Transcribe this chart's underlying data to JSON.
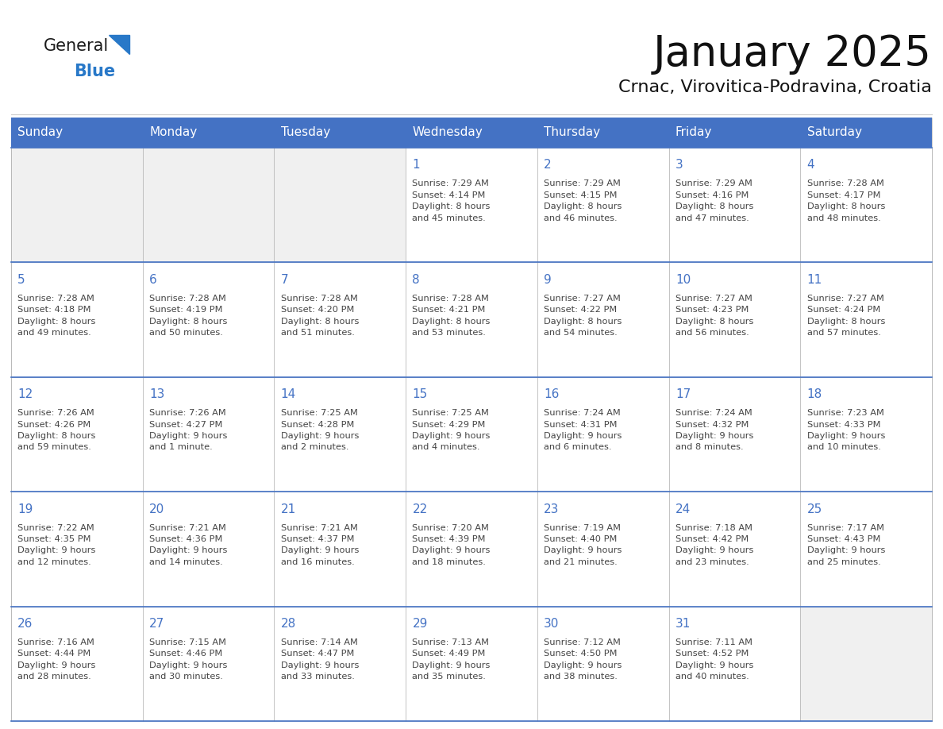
{
  "title": "January 2025",
  "subtitle": "Crnac, Virovitica-Podravina, Croatia",
  "header_color": "#4472C4",
  "header_text_color": "#FFFFFF",
  "cell_bg_color": "#FFFFFF",
  "empty_cell_bg_color": "#F0F0F0",
  "cell_border_color": "#AAAAAA",
  "row_border_color": "#4472C4",
  "day_number_color": "#4472C4",
  "text_color": "#444444",
  "days_of_week": [
    "Sunday",
    "Monday",
    "Tuesday",
    "Wednesday",
    "Thursday",
    "Friday",
    "Saturday"
  ],
  "calendar_data": [
    [
      {
        "day": "",
        "info": ""
      },
      {
        "day": "",
        "info": ""
      },
      {
        "day": "",
        "info": ""
      },
      {
        "day": "1",
        "info": "Sunrise: 7:29 AM\nSunset: 4:14 PM\nDaylight: 8 hours\nand 45 minutes."
      },
      {
        "day": "2",
        "info": "Sunrise: 7:29 AM\nSunset: 4:15 PM\nDaylight: 8 hours\nand 46 minutes."
      },
      {
        "day": "3",
        "info": "Sunrise: 7:29 AM\nSunset: 4:16 PM\nDaylight: 8 hours\nand 47 minutes."
      },
      {
        "day": "4",
        "info": "Sunrise: 7:28 AM\nSunset: 4:17 PM\nDaylight: 8 hours\nand 48 minutes."
      }
    ],
    [
      {
        "day": "5",
        "info": "Sunrise: 7:28 AM\nSunset: 4:18 PM\nDaylight: 8 hours\nand 49 minutes."
      },
      {
        "day": "6",
        "info": "Sunrise: 7:28 AM\nSunset: 4:19 PM\nDaylight: 8 hours\nand 50 minutes."
      },
      {
        "day": "7",
        "info": "Sunrise: 7:28 AM\nSunset: 4:20 PM\nDaylight: 8 hours\nand 51 minutes."
      },
      {
        "day": "8",
        "info": "Sunrise: 7:28 AM\nSunset: 4:21 PM\nDaylight: 8 hours\nand 53 minutes."
      },
      {
        "day": "9",
        "info": "Sunrise: 7:27 AM\nSunset: 4:22 PM\nDaylight: 8 hours\nand 54 minutes."
      },
      {
        "day": "10",
        "info": "Sunrise: 7:27 AM\nSunset: 4:23 PM\nDaylight: 8 hours\nand 56 minutes."
      },
      {
        "day": "11",
        "info": "Sunrise: 7:27 AM\nSunset: 4:24 PM\nDaylight: 8 hours\nand 57 minutes."
      }
    ],
    [
      {
        "day": "12",
        "info": "Sunrise: 7:26 AM\nSunset: 4:26 PM\nDaylight: 8 hours\nand 59 minutes."
      },
      {
        "day": "13",
        "info": "Sunrise: 7:26 AM\nSunset: 4:27 PM\nDaylight: 9 hours\nand 1 minute."
      },
      {
        "day": "14",
        "info": "Sunrise: 7:25 AM\nSunset: 4:28 PM\nDaylight: 9 hours\nand 2 minutes."
      },
      {
        "day": "15",
        "info": "Sunrise: 7:25 AM\nSunset: 4:29 PM\nDaylight: 9 hours\nand 4 minutes."
      },
      {
        "day": "16",
        "info": "Sunrise: 7:24 AM\nSunset: 4:31 PM\nDaylight: 9 hours\nand 6 minutes."
      },
      {
        "day": "17",
        "info": "Sunrise: 7:24 AM\nSunset: 4:32 PM\nDaylight: 9 hours\nand 8 minutes."
      },
      {
        "day": "18",
        "info": "Sunrise: 7:23 AM\nSunset: 4:33 PM\nDaylight: 9 hours\nand 10 minutes."
      }
    ],
    [
      {
        "day": "19",
        "info": "Sunrise: 7:22 AM\nSunset: 4:35 PM\nDaylight: 9 hours\nand 12 minutes."
      },
      {
        "day": "20",
        "info": "Sunrise: 7:21 AM\nSunset: 4:36 PM\nDaylight: 9 hours\nand 14 minutes."
      },
      {
        "day": "21",
        "info": "Sunrise: 7:21 AM\nSunset: 4:37 PM\nDaylight: 9 hours\nand 16 minutes."
      },
      {
        "day": "22",
        "info": "Sunrise: 7:20 AM\nSunset: 4:39 PM\nDaylight: 9 hours\nand 18 minutes."
      },
      {
        "day": "23",
        "info": "Sunrise: 7:19 AM\nSunset: 4:40 PM\nDaylight: 9 hours\nand 21 minutes."
      },
      {
        "day": "24",
        "info": "Sunrise: 7:18 AM\nSunset: 4:42 PM\nDaylight: 9 hours\nand 23 minutes."
      },
      {
        "day": "25",
        "info": "Sunrise: 7:17 AM\nSunset: 4:43 PM\nDaylight: 9 hours\nand 25 minutes."
      }
    ],
    [
      {
        "day": "26",
        "info": "Sunrise: 7:16 AM\nSunset: 4:44 PM\nDaylight: 9 hours\nand 28 minutes."
      },
      {
        "day": "27",
        "info": "Sunrise: 7:15 AM\nSunset: 4:46 PM\nDaylight: 9 hours\nand 30 minutes."
      },
      {
        "day": "28",
        "info": "Sunrise: 7:14 AM\nSunset: 4:47 PM\nDaylight: 9 hours\nand 33 minutes."
      },
      {
        "day": "29",
        "info": "Sunrise: 7:13 AM\nSunset: 4:49 PM\nDaylight: 9 hours\nand 35 minutes."
      },
      {
        "day": "30",
        "info": "Sunrise: 7:12 AM\nSunset: 4:50 PM\nDaylight: 9 hours\nand 38 minutes."
      },
      {
        "day": "31",
        "info": "Sunrise: 7:11 AM\nSunset: 4:52 PM\nDaylight: 9 hours\nand 40 minutes."
      },
      {
        "day": "",
        "info": ""
      }
    ]
  ],
  "logo_general_color": "#1a1a1a",
  "logo_blue_color": "#2878C8",
  "logo_triangle_color": "#2878C8"
}
